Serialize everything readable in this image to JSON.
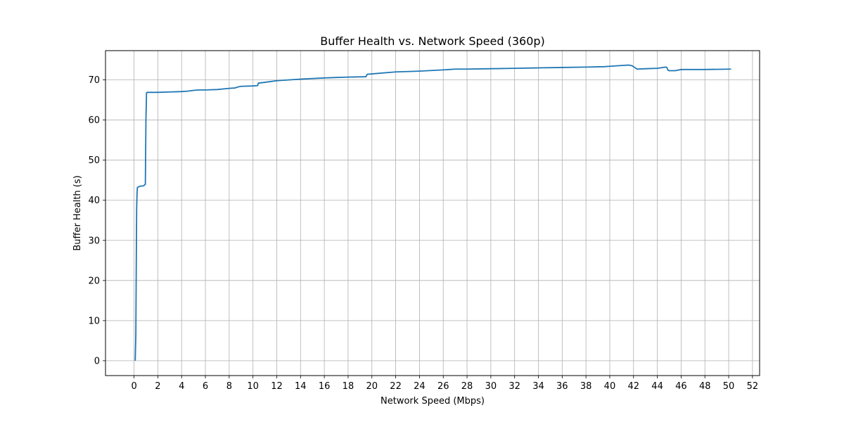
{
  "chart_data": {
    "type": "line",
    "title": "Buffer Health vs. Network Speed (360p)",
    "xlabel": "Network Speed (Mbps)",
    "ylabel": "Buffer Health (s)",
    "xlim": [
      -2.4,
      52.6
    ],
    "ylim": [
      -3.7,
      77.3
    ],
    "xticks": [
      0,
      2,
      4,
      6,
      8,
      10,
      12,
      14,
      16,
      18,
      20,
      22,
      24,
      26,
      28,
      30,
      32,
      34,
      36,
      38,
      40,
      42,
      44,
      46,
      48,
      50,
      52
    ],
    "yticks": [
      0,
      10,
      20,
      30,
      40,
      50,
      60,
      70
    ],
    "grid": true,
    "color": "#1f77b4",
    "series": [
      {
        "x": [
          0.1,
          0.15,
          0.2,
          0.22,
          0.25,
          0.28,
          0.35,
          0.5,
          0.8,
          0.95,
          1.0,
          1.05,
          1.1,
          2.0,
          3.0,
          4.0,
          4.5,
          5.0,
          5.5,
          6.0,
          7.0,
          8.0,
          8.5,
          8.8,
          9.0,
          10.0,
          10.4,
          10.45,
          11.0,
          12.0,
          14.0,
          16.0,
          17.0,
          18.0,
          19.5,
          19.6,
          20.0,
          22.0,
          24.0,
          26.0,
          27.0,
          28.0,
          30.0,
          32.0,
          34.0,
          36.0,
          38.0,
          39.5,
          40.0,
          41.0,
          41.6,
          41.9,
          42.0,
          42.3,
          43.0,
          44.0,
          44.7,
          44.8,
          44.9,
          45.0,
          45.5,
          46.0,
          48.0,
          50.2
        ],
        "y": [
          0.0,
          6.5,
          30.0,
          38.0,
          41.5,
          43.2,
          43.3,
          43.5,
          43.6,
          44.0,
          60.0,
          66.8,
          66.9,
          66.9,
          67.0,
          67.1,
          67.2,
          67.4,
          67.5,
          67.5,
          67.6,
          67.9,
          68.0,
          68.3,
          68.4,
          68.5,
          68.6,
          69.2,
          69.4,
          69.8,
          70.2,
          70.5,
          70.6,
          70.7,
          70.8,
          71.4,
          71.5,
          72.0,
          72.2,
          72.5,
          72.7,
          72.7,
          72.8,
          72.9,
          73.0,
          73.1,
          73.2,
          73.3,
          73.4,
          73.6,
          73.7,
          73.5,
          73.3,
          72.7,
          72.8,
          72.9,
          73.2,
          73.1,
          72.4,
          72.3,
          72.3,
          72.6,
          72.6,
          72.7
        ]
      }
    ]
  }
}
